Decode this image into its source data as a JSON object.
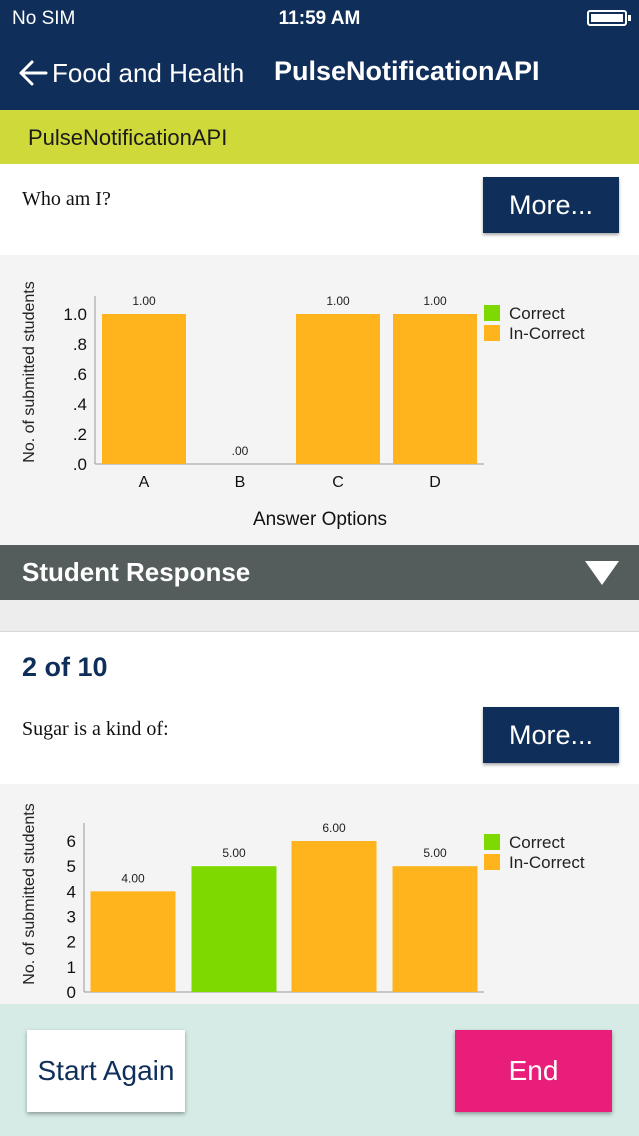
{
  "status_bar": {
    "carrier": "No SIM",
    "time": "11:59 AM",
    "battery_icon": "battery-icon"
  },
  "nav": {
    "back_label": "Food and Health",
    "title": "PulseNotificationAPI",
    "back_icon": "back-arrow-icon"
  },
  "subheader": {
    "label": "PulseNotificationAPI"
  },
  "colors": {
    "nav_bg": "#0f2f5a",
    "subheader_bg": "#cfd93a",
    "correct": "#7ed900",
    "incorrect": "#ffb31c",
    "end_button": "#e91e7b",
    "footer_bg": "#d6ebe6",
    "section_bar": "#545c5c"
  },
  "question1": {
    "text": "Who am I?",
    "more_label": "More..."
  },
  "question2": {
    "counter": "2 of 10",
    "text": "Sugar is a kind of:",
    "more_label": "More..."
  },
  "student_response": {
    "label": "Student Response",
    "toggle_icon": "triangle-down-icon"
  },
  "footer": {
    "start_again": "Start Again",
    "end": "End"
  },
  "chart_data": [
    {
      "type": "bar",
      "ylabel": "No. of submitted students",
      "xlabel": "Answer Options",
      "categories": [
        "A",
        "B",
        "C",
        "D"
      ],
      "values": [
        1.0,
        0.0,
        1.0,
        1.0
      ],
      "value_labels": [
        "1.00",
        ".00",
        "1.00",
        "1.00"
      ],
      "correct_flags": [
        false,
        false,
        false,
        false
      ],
      "ylim": [
        0,
        1.0
      ],
      "yticks": [
        ".0",
        ".2",
        ".4",
        ".6",
        ".8",
        "1.0"
      ],
      "legend": [
        "Correct",
        "In-Correct"
      ],
      "legend_position": "top-right"
    },
    {
      "type": "bar",
      "ylabel": "No. of submitted students",
      "xlabel": "",
      "categories": [
        "",
        "",
        "",
        ""
      ],
      "values": [
        4,
        5,
        6,
        5
      ],
      "value_labels": [
        "4.00",
        "5.00",
        "6.00",
        "5.00"
      ],
      "correct_flags": [
        false,
        true,
        false,
        false
      ],
      "ylim": [
        0,
        6
      ],
      "yticks": [
        "0",
        "1",
        "2",
        "3",
        "4",
        "5",
        "6"
      ],
      "legend": [
        "Correct",
        "In-Correct"
      ],
      "legend_position": "top-right"
    }
  ]
}
